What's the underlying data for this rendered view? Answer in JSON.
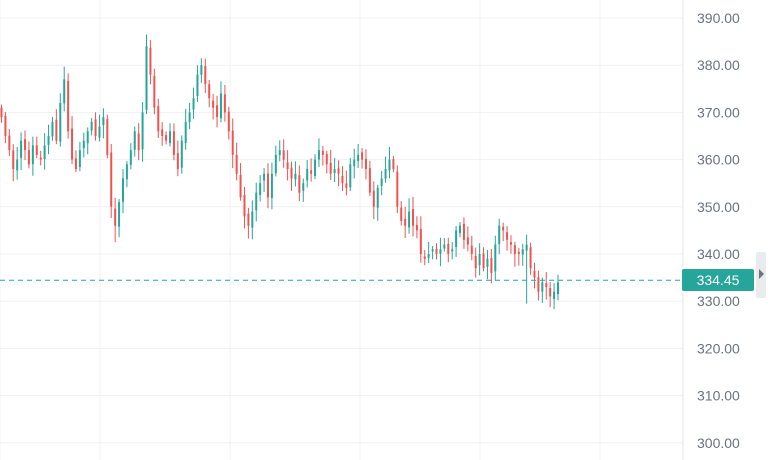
{
  "colors": {
    "up": "#26a69a",
    "down": "#ef5350",
    "grid": "#f0f1f3",
    "axis_text": "#6b7280",
    "price_line": "#26a69a"
  },
  "current_price_label": "334.45",
  "chart_data": {
    "type": "candlestick",
    "title": "",
    "xlabel": "",
    "ylabel": "",
    "ylim": [
      298,
      392
    ],
    "y_ticks": [
      "390.00",
      "380.00",
      "370.00",
      "360.00",
      "350.00",
      "340.00",
      "330.00",
      "320.00",
      "310.00",
      "300.00"
    ],
    "grid": true,
    "last_price": 334.45,
    "closes": [
      369,
      365,
      362,
      358,
      360,
      364,
      362,
      359,
      363,
      361,
      360,
      363,
      365,
      368,
      364,
      372,
      377,
      366,
      360,
      358,
      362,
      364,
      366,
      368,
      365,
      367,
      369,
      361,
      350,
      346,
      351,
      356,
      359,
      362,
      366,
      362,
      370,
      384,
      378,
      371,
      366,
      365,
      364,
      366,
      361,
      358,
      364,
      368,
      370,
      373,
      378,
      380,
      376,
      373,
      371,
      369,
      374,
      370,
      366,
      361,
      357,
      352,
      348,
      346,
      349,
      353,
      355,
      357,
      352,
      357,
      361,
      362,
      360,
      358,
      356,
      357,
      353,
      355,
      358,
      357,
      360,
      362,
      361,
      359,
      357,
      358,
      357,
      355,
      354,
      359,
      360,
      361,
      360,
      358,
      353,
      350,
      354,
      356,
      358,
      360,
      358,
      350,
      347,
      346,
      349,
      346,
      345,
      340,
      339,
      340,
      341,
      340,
      341,
      342,
      340,
      341,
      345,
      346,
      343,
      342,
      340,
      337,
      340,
      337,
      339,
      336,
      342,
      346,
      345,
      343,
      342,
      340,
      340,
      341,
      342,
      337,
      335,
      332,
      334,
      333,
      331,
      332,
      334
    ]
  }
}
